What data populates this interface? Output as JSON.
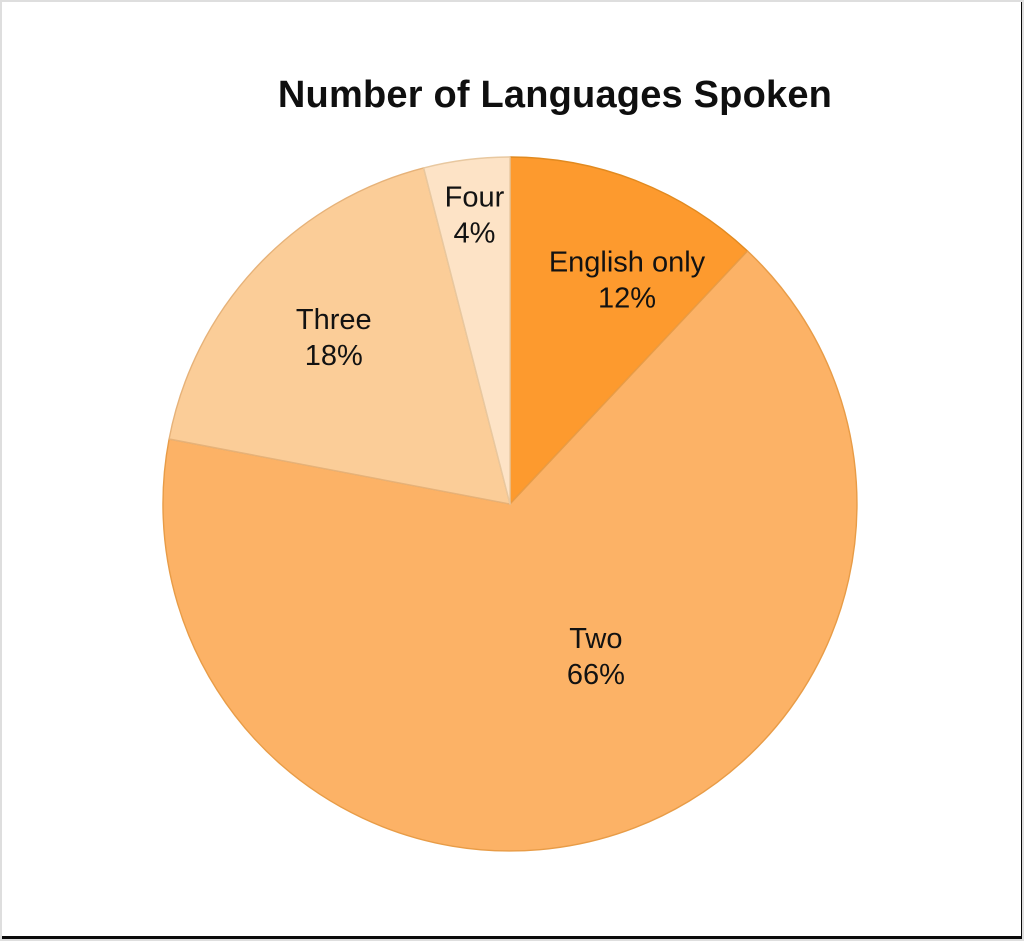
{
  "page": {
    "background": "#ffffff",
    "frame_border_color": "#dedede",
    "frame_edge_color": "#0a0a0a"
  },
  "chart_data": {
    "type": "pie",
    "title": "Number of Languages Spoken",
    "text_color": "#121212",
    "start_angle_deg": 0,
    "direction": "clockwise",
    "value_suffix": "%",
    "total": 100,
    "legend": "none",
    "slices": [
      {
        "label": "English only",
        "value": 12,
        "color": "#fd9a2e",
        "stroke": "#e18a20",
        "label_pos": {
          "angle_deg": 27.5,
          "r_frac": 0.73
        }
      },
      {
        "label": "Two",
        "value": 66,
        "color": "#fcb266",
        "stroke": "#e89c47",
        "label_pos": {
          "angle_deg": 150.5,
          "r_frac": 0.503
        }
      },
      {
        "label": "Three",
        "value": 18,
        "color": "#fbcd98",
        "stroke": "#e6b279",
        "label_pos": {
          "angle_deg": 313.5,
          "r_frac": 0.7
        }
      },
      {
        "label": "Four",
        "value": 4,
        "color": "#fde3c6",
        "stroke": "#e8c8a0",
        "label_pos": {
          "angle_deg": 353.0,
          "r_frac": 0.84
        }
      }
    ]
  }
}
